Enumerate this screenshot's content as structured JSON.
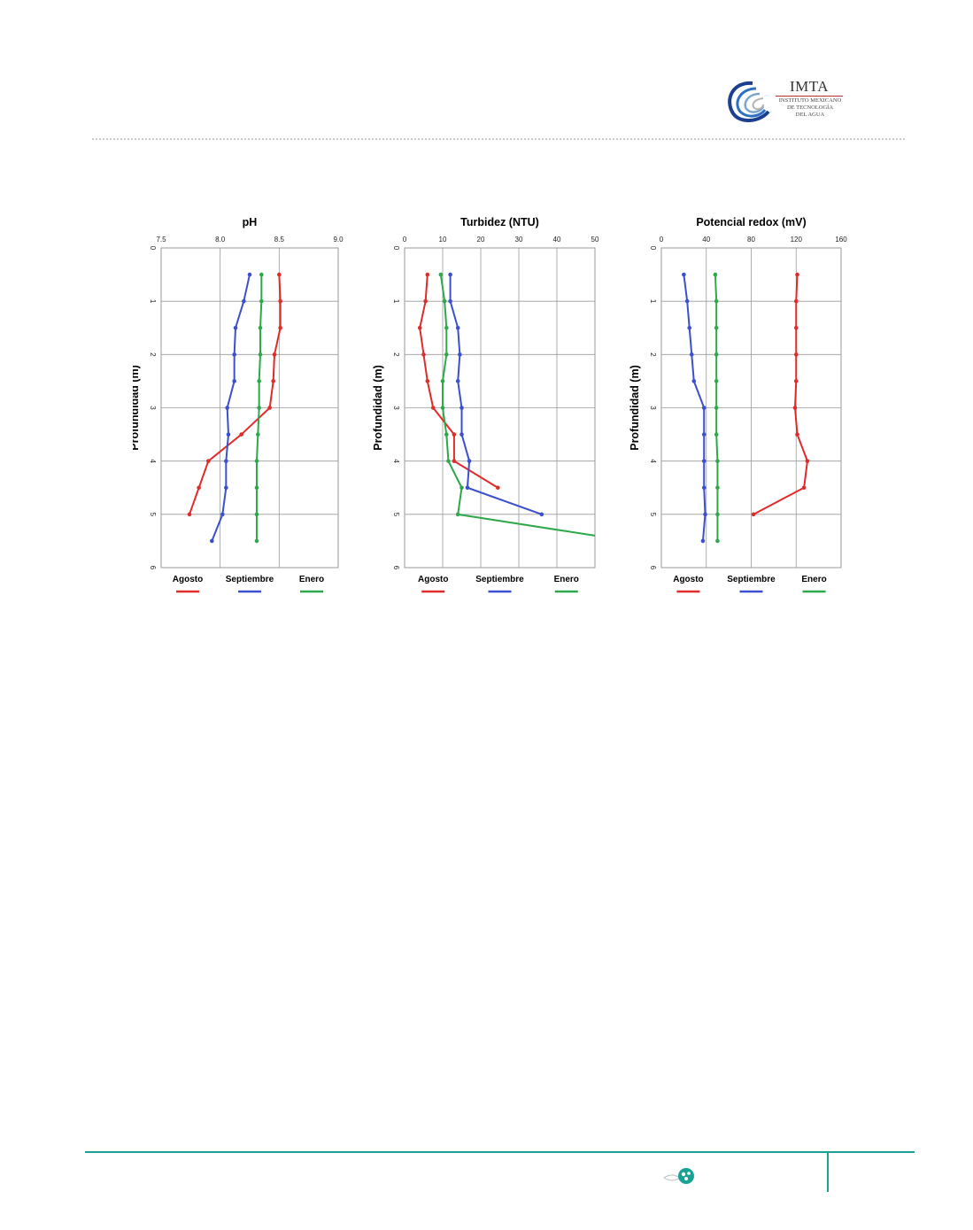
{
  "logo": {
    "name": "IMTA",
    "subtitle": [
      "INSTITUTO MEXICANO",
      "DE TECNOLOGÍA",
      "DEL AGUA"
    ]
  },
  "colors": {
    "agosto": "#e02b2b",
    "septiembre": "#3b4fd0",
    "enero": "#2ea84a",
    "footer_accent": "#1aa196"
  },
  "chart_data": [
    {
      "type": "line",
      "title": "pH",
      "ylabel": "Profundidad (m)",
      "xlim": [
        7.5,
        9.0
      ],
      "ylim": [
        0,
        6
      ],
      "x_ticks": [
        "7.5",
        "8.0",
        "8.5",
        "9.0"
      ],
      "y_ticks": [
        "0",
        "1",
        "2",
        "3",
        "4",
        "5",
        "6"
      ],
      "grid": true,
      "legend_position": "bottom",
      "series": [
        {
          "name": "Agosto",
          "color": "#e02b2b",
          "x": [
            8.5,
            8.51,
            8.51,
            8.46,
            8.45,
            8.42,
            8.18,
            7.9,
            7.82,
            7.74
          ],
          "y": [
            0.5,
            1.0,
            1.5,
            2.0,
            2.5,
            3.0,
            3.5,
            4.0,
            4.5,
            5.0
          ]
        },
        {
          "name": "Septiembre",
          "color": "#3b4fd0",
          "x": [
            8.25,
            8.2,
            8.13,
            8.12,
            8.12,
            8.06,
            8.07,
            8.05,
            8.05,
            8.02,
            7.93
          ],
          "y": [
            0.5,
            1.0,
            1.5,
            2.0,
            2.5,
            3.0,
            3.5,
            4.0,
            4.5,
            5.0,
            5.5
          ]
        },
        {
          "name": "Enero",
          "color": "#2ea84a",
          "x": [
            8.35,
            8.35,
            8.34,
            8.34,
            8.33,
            8.33,
            8.32,
            8.31,
            8.31,
            8.31,
            8.31
          ],
          "y": [
            0.5,
            1.0,
            1.5,
            2.0,
            2.5,
            3.0,
            3.5,
            4.0,
            4.5,
            5.0,
            5.5
          ]
        }
      ]
    },
    {
      "type": "line",
      "title": "Turbidez (NTU)",
      "ylabel": "Profundidad (m)",
      "xlim": [
        0,
        50
      ],
      "ylim": [
        0,
        6
      ],
      "x_ticks": [
        "0",
        "10",
        "20",
        "30",
        "40",
        "50"
      ],
      "y_ticks": [
        "0",
        "1",
        "2",
        "3",
        "4",
        "5",
        "6"
      ],
      "grid": true,
      "legend_position": "bottom",
      "series": [
        {
          "name": "Agosto",
          "color": "#e02b2b",
          "x": [
            6,
            5.5,
            4,
            5,
            6,
            7.5,
            13,
            13,
            24.5
          ],
          "y": [
            0.5,
            1.0,
            1.5,
            2.0,
            2.5,
            3.0,
            3.5,
            4.0,
            4.5
          ]
        },
        {
          "name": "Septiembre",
          "color": "#3b4fd0",
          "x": [
            12,
            12,
            14,
            14.5,
            14,
            15,
            15,
            17,
            16.5,
            36
          ],
          "y": [
            0.5,
            1.0,
            1.5,
            2.0,
            2.5,
            3.0,
            3.5,
            4.0,
            4.5,
            5.0
          ]
        },
        {
          "name": "Enero",
          "color": "#2ea84a",
          "x": [
            9.5,
            10.5,
            11,
            11,
            10,
            10,
            11,
            11.5,
            15,
            14,
            50
          ],
          "y": [
            0.5,
            1.0,
            1.5,
            2.0,
            2.5,
            3.0,
            3.5,
            4.0,
            4.5,
            5.0,
            5.4
          ]
        }
      ]
    },
    {
      "type": "line",
      "title": "Potencial redox (mV)",
      "ylabel": "Profundidad (m)",
      "xlim": [
        0,
        160
      ],
      "ylim": [
        0,
        6
      ],
      "x_ticks": [
        "0",
        "40",
        "80",
        "120",
        "160"
      ],
      "y_ticks": [
        "0",
        "1",
        "2",
        "3",
        "4",
        "5",
        "6"
      ],
      "grid": true,
      "legend_position": "bottom",
      "series": [
        {
          "name": "Agosto",
          "color": "#e02b2b",
          "x": [
            121,
            120,
            120,
            120,
            120,
            119,
            121,
            130,
            127,
            82
          ],
          "y": [
            0.5,
            1.0,
            1.5,
            2.0,
            2.5,
            3.0,
            3.5,
            4.0,
            4.5,
            5.0
          ]
        },
        {
          "name": "Septiembre",
          "color": "#3b4fd0",
          "x": [
            20,
            23,
            25,
            27,
            29,
            38,
            38,
            38,
            38,
            39,
            37
          ],
          "y": [
            0.5,
            1.0,
            1.5,
            2.0,
            2.5,
            3.0,
            3.5,
            4.0,
            4.5,
            5.0,
            5.5
          ]
        },
        {
          "name": "Enero",
          "color": "#2ea84a",
          "x": [
            48,
            49,
            49,
            49,
            49,
            49,
            49,
            50,
            50,
            50,
            50
          ],
          "y": [
            0.5,
            1.0,
            1.5,
            2.0,
            2.5,
            3.0,
            3.5,
            4.0,
            4.5,
            5.0,
            5.5
          ]
        }
      ]
    }
  ]
}
